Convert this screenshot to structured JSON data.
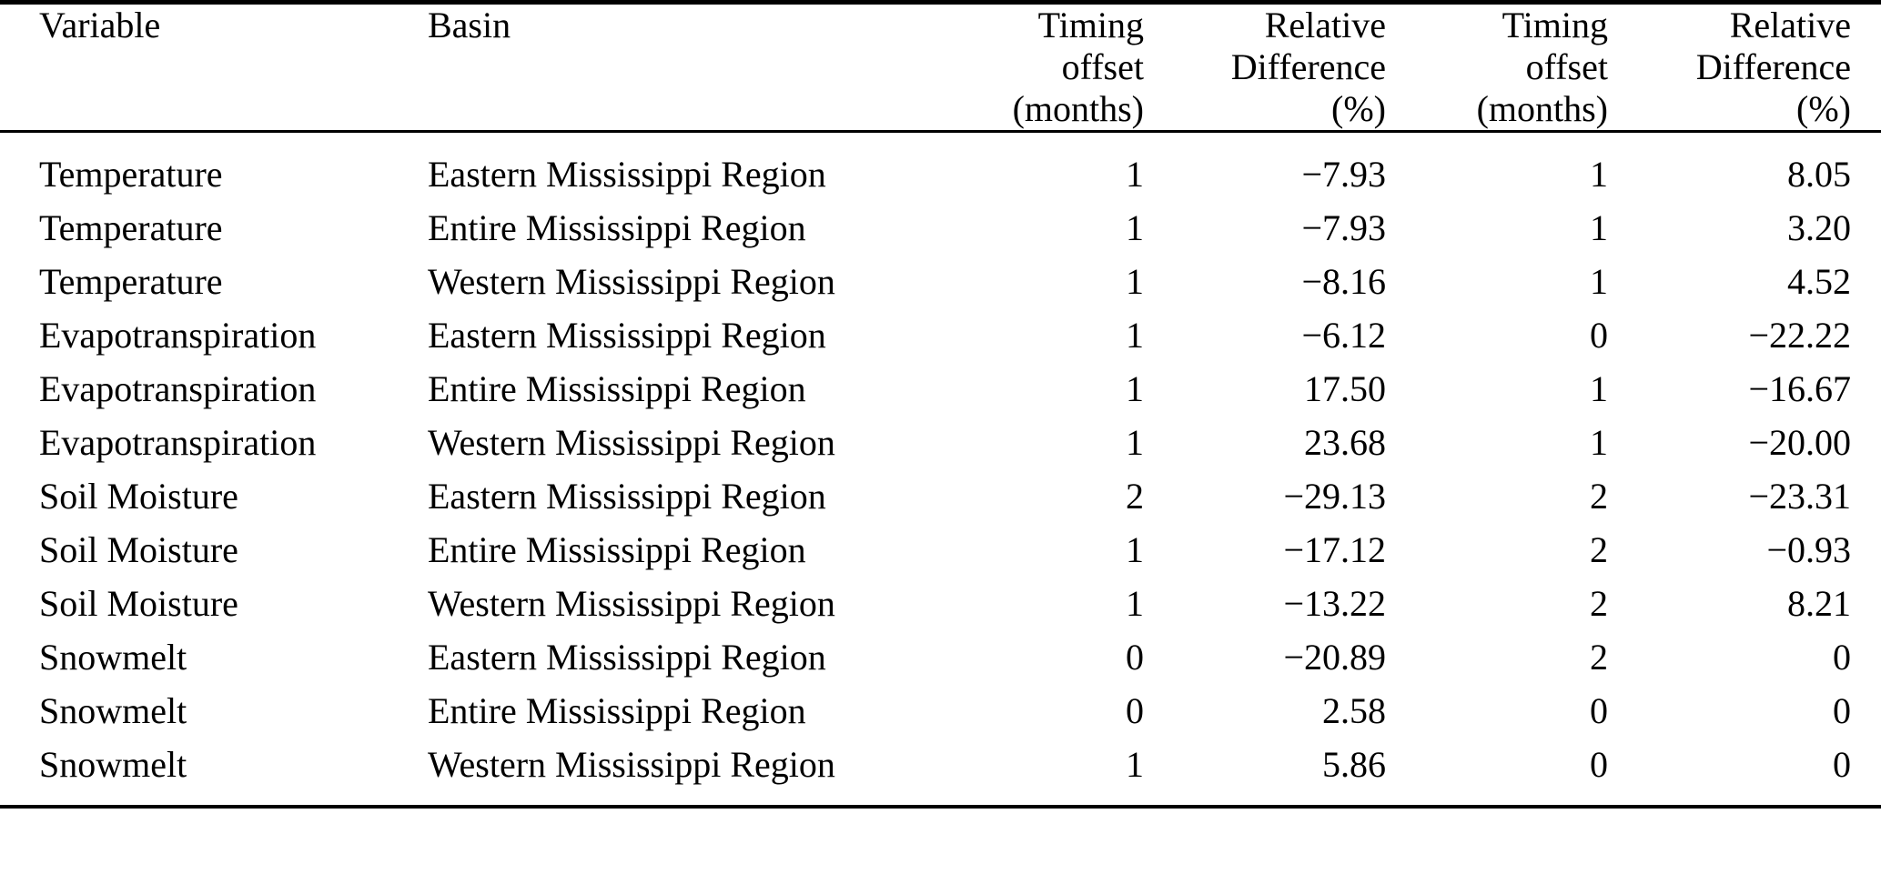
{
  "table": {
    "columns": [
      {
        "id": "variable",
        "label": "Variable",
        "align": "left"
      },
      {
        "id": "basin",
        "label": "Basin",
        "align": "left"
      },
      {
        "id": "timing-offset-a",
        "label": "Timing\noffset\n(months)",
        "align": "right"
      },
      {
        "id": "relative-difference-a",
        "label": "Relative\nDifference\n(%)",
        "align": "right"
      },
      {
        "id": "timing-offset-b",
        "label": "Timing\noffset\n(months)",
        "align": "right"
      },
      {
        "id": "relative-difference-b",
        "label": "Relative\nDifference\n(%)",
        "align": "right"
      }
    ],
    "rows": [
      [
        "Temperature",
        "Eastern Mississippi Region",
        "1",
        "−7.93",
        "1",
        "8.05"
      ],
      [
        "Temperature",
        "Entire Mississippi Region",
        "1",
        "−7.93",
        "1",
        "3.20"
      ],
      [
        "Temperature",
        "Western Mississippi Region",
        "1",
        "−8.16",
        "1",
        "4.52"
      ],
      [
        "Evapotranspiration",
        "Eastern Mississippi Region",
        "1",
        "−6.12",
        "0",
        "−22.22"
      ],
      [
        "Evapotranspiration",
        "Entire Mississippi Region",
        "1",
        "17.50",
        "1",
        "−16.67"
      ],
      [
        "Evapotranspiration",
        "Western Mississippi Region",
        "1",
        "23.68",
        "1",
        "−20.00"
      ],
      [
        "Soil Moisture",
        "Eastern Mississippi Region",
        "2",
        "−29.13",
        "2",
        "−23.31"
      ],
      [
        "Soil Moisture",
        "Entire Mississippi Region",
        "1",
        "−17.12",
        "2",
        "−0.93"
      ],
      [
        "Soil Moisture",
        "Western Mississippi Region",
        "1",
        "−13.22",
        "2",
        "8.21"
      ],
      [
        "Snowmelt",
        "Eastern Mississippi Region",
        "0",
        "−20.89",
        "2",
        "0"
      ],
      [
        "Snowmelt",
        "Entire Mississippi Region",
        "0",
        "2.58",
        "0",
        "0"
      ],
      [
        "Snowmelt",
        "Western Mississippi Region",
        "1",
        "5.86",
        "0",
        "0"
      ]
    ],
    "styling": {
      "text_color": "#000000",
      "background_color": "#ffffff",
      "rule_color": "#000000"
    }
  }
}
